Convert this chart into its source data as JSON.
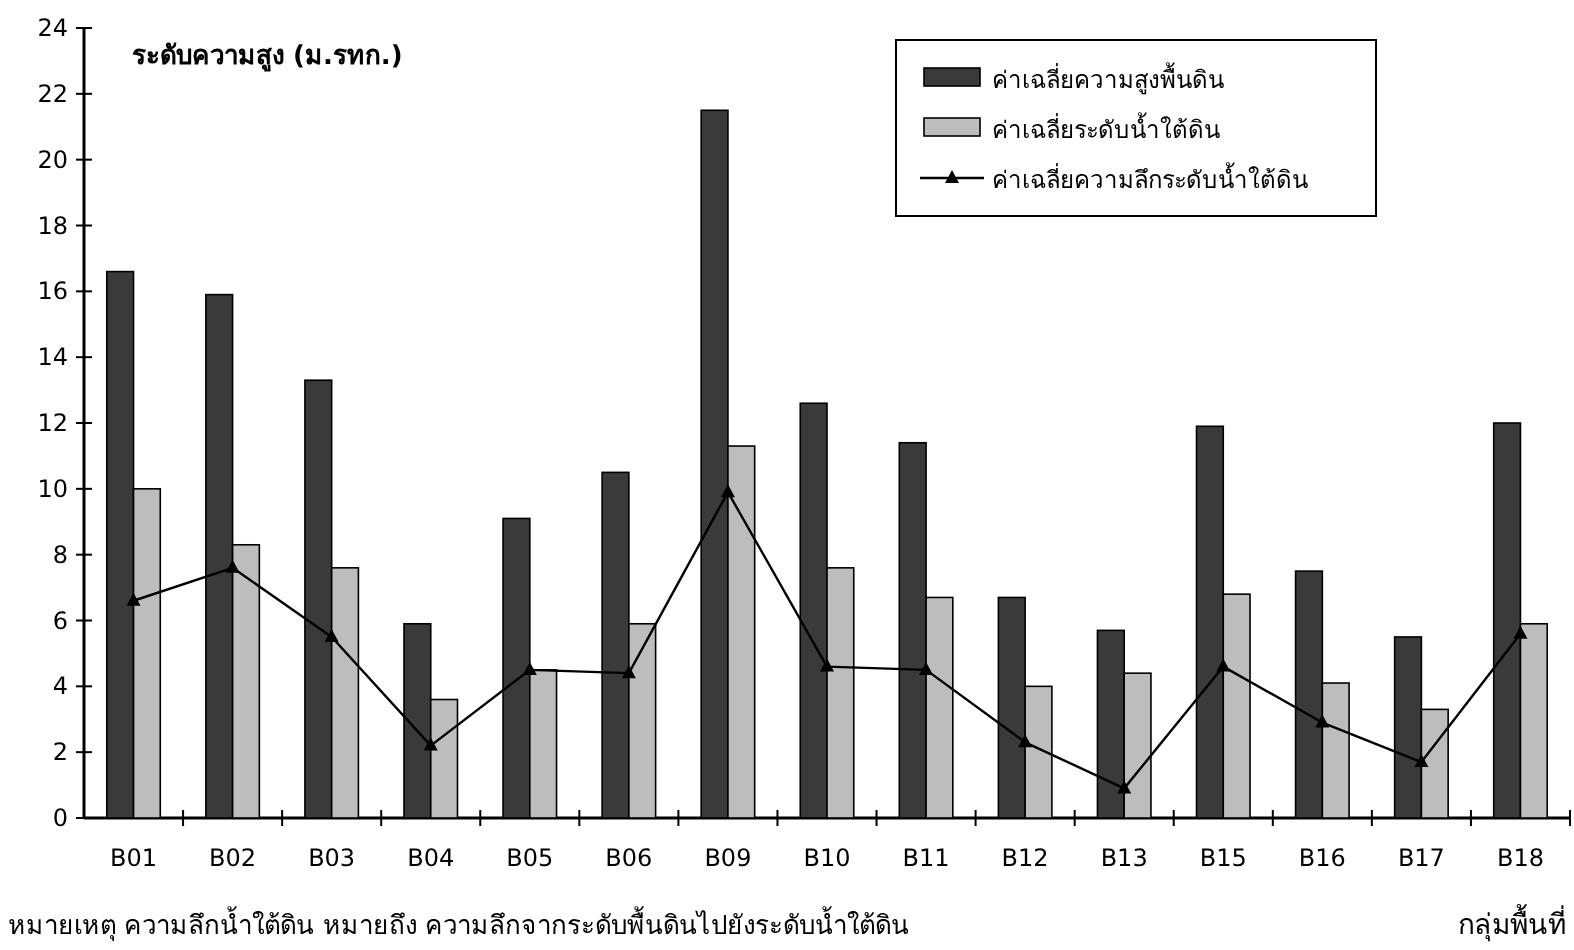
{
  "chart_data": {
    "type": "bar",
    "ylabel": "ระดับความสูง (ม.รทก.)",
    "xlabel": "กลุ่มพื้นที่",
    "categories": [
      "B01",
      "B02",
      "B03",
      "B04",
      "B05",
      "B06",
      "B09",
      "B10",
      "B11",
      "B12",
      "B13",
      "B15",
      "B16",
      "B17",
      "B18"
    ],
    "series": [
      {
        "name": "ค่าเฉลี่ยความสูงพื้นดิน",
        "color": "#3a3a3a",
        "values": [
          16.6,
          15.9,
          13.3,
          5.9,
          9.1,
          10.5,
          21.5,
          12.6,
          11.4,
          6.7,
          5.7,
          11.9,
          7.5,
          5.5,
          12.0
        ]
      },
      {
        "name": "ค่าเฉลี่ยระดับน้ำใต้ดิน",
        "color": "#bdbdbd",
        "values": [
          10.0,
          8.3,
          7.6,
          3.6,
          4.5,
          5.9,
          11.3,
          7.6,
          6.7,
          4.0,
          4.4,
          6.8,
          4.1,
          3.3,
          5.9
        ]
      },
      {
        "name": "ค่าเฉลี่ยความลึกระดับน้ำใต้ดิน",
        "type": "line",
        "color": "#000000",
        "marker": "triangle",
        "values": [
          6.6,
          7.6,
          5.5,
          2.2,
          4.5,
          4.4,
          9.9,
          4.6,
          4.5,
          2.3,
          0.9,
          4.6,
          2.9,
          1.7,
          5.6
        ]
      }
    ],
    "ylim": [
      0,
      24
    ],
    "yticks": [
      0,
      2,
      4,
      6,
      8,
      10,
      12,
      14,
      16,
      18,
      20,
      22,
      24
    ],
    "legend": "top right",
    "annotations": [
      "หมายเหตุ ความลึกน้ำใต้ดิน หมายถึง ความลึกจากระดับพื้นดินไปยังระดับน้ำใต้ดิน"
    ]
  }
}
